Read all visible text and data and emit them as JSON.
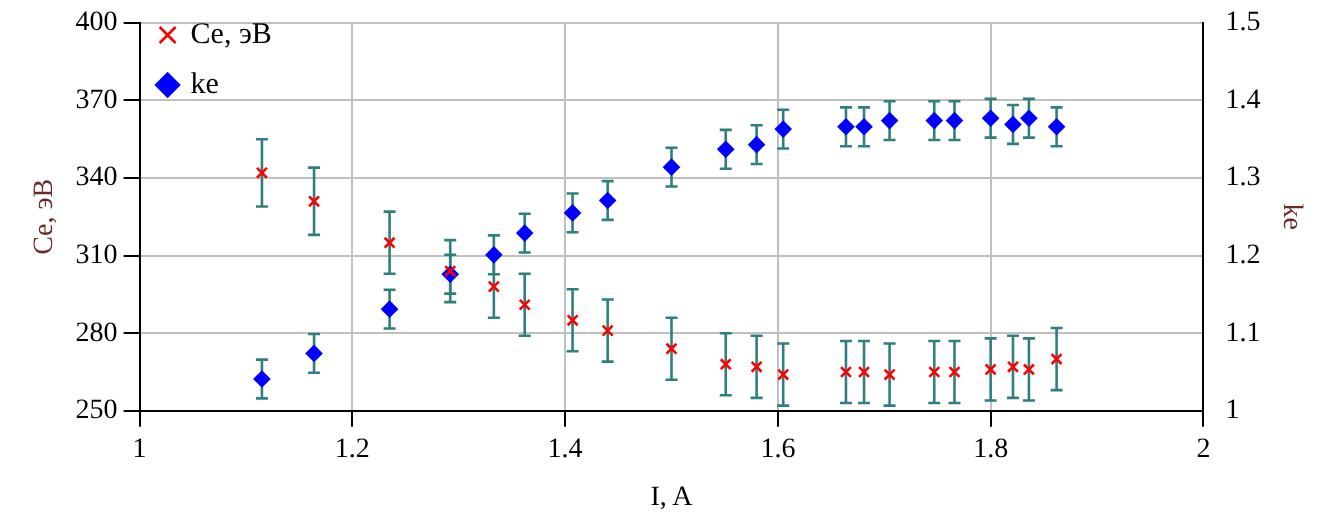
{
  "chart_data": {
    "type": "scatter",
    "xlabel": "I, A",
    "ylabel": "Ce, эВ",
    "y2label": "ke",
    "x": [
      1.115,
      1.164,
      1.235,
      1.292,
      1.333,
      1.362,
      1.407,
      1.44,
      1.5,
      1.551,
      1.58,
      1.605,
      1.664,
      1.681,
      1.705,
      1.747,
      1.766,
      1.8,
      1.821,
      1.836,
      1.862
    ],
    "series": [
      {
        "name": "Ce, эВ",
        "color": "#ff0000",
        "marker": "cross",
        "values": [
          342,
          331,
          315,
          304,
          298,
          291,
          285,
          281,
          274,
          268,
          267,
          264,
          265,
          265,
          264,
          265,
          265,
          266,
          267,
          266,
          270
        ],
        "errors": [
          13,
          13,
          12,
          12,
          12,
          12,
          12,
          12,
          12,
          12,
          12,
          12,
          12,
          12,
          12,
          12,
          12,
          12,
          12,
          12,
          12
        ]
      },
      {
        "name": "ke",
        "color": "#0000ff",
        "marker": "diamond",
        "axis": "y2",
        "values": [
          1.041,
          1.074,
          1.131,
          1.176,
          1.201,
          1.229,
          1.255,
          1.271,
          1.314,
          1.337,
          1.343,
          1.363,
          1.366,
          1.366,
          1.374,
          1.374,
          1.374,
          1.377,
          1.369,
          1.377,
          1.366
        ],
        "errors": [
          0.025,
          0.025,
          0.025,
          0.025,
          0.025,
          0.025,
          0.025,
          0.025,
          0.025,
          0.025,
          0.025,
          0.025,
          0.025,
          0.025,
          0.025,
          0.025,
          0.025,
          0.025,
          0.025,
          0.025,
          0.025
        ]
      }
    ],
    "xlim": [
      1,
      2
    ],
    "xticks": [
      1,
      1.2,
      1.4,
      1.6,
      1.8,
      2
    ],
    "ylim": [
      250,
      400
    ],
    "yticks": [
      250,
      280,
      310,
      340,
      370,
      400
    ],
    "y2lim": [
      1,
      1.5
    ],
    "y2ticks": [
      1,
      1.1,
      1.2,
      1.3,
      1.4,
      1.5
    ],
    "grid": true,
    "legend": "top left"
  }
}
